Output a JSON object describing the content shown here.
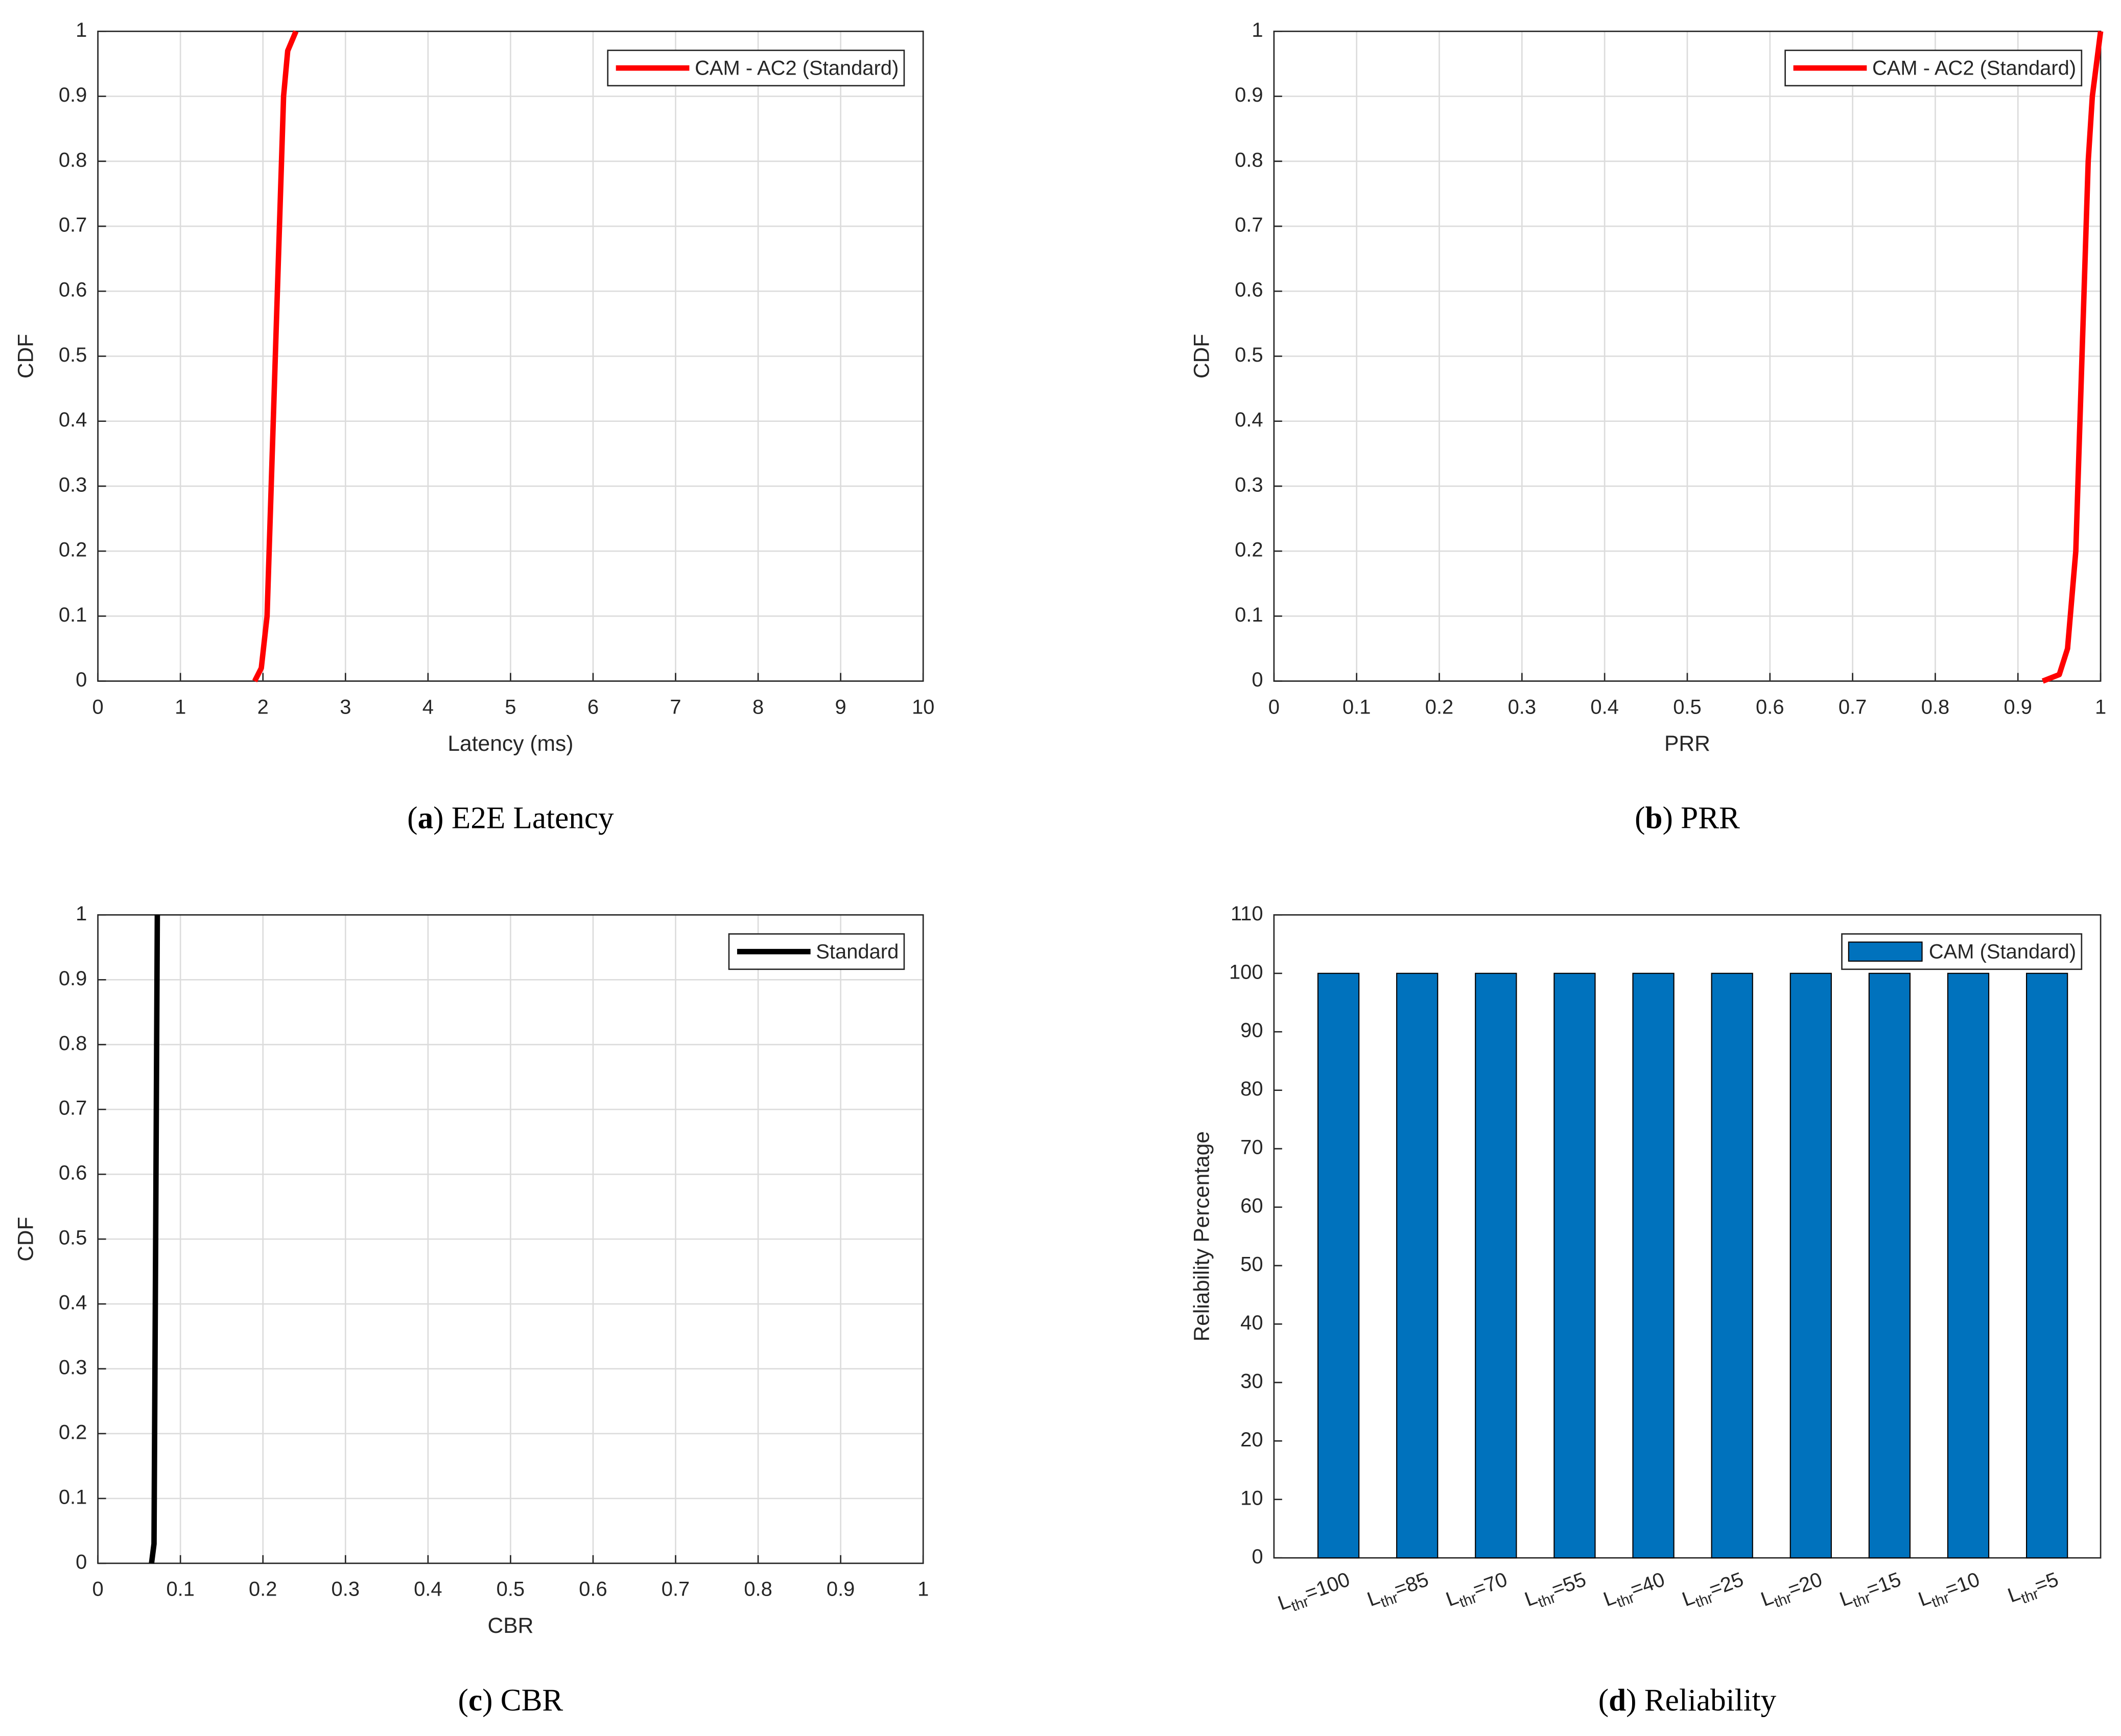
{
  "chart_data": [
    {
      "type": "line",
      "caption": [
        "(",
        "a",
        ") E2E Latency"
      ],
      "xlabel": "Latency (ms)",
      "ylabel": "CDF",
      "x": [
        1.9,
        1.98,
        2.05,
        2.1,
        2.15,
        2.2,
        2.25,
        2.3,
        2.4
      ],
      "series": [
        {
          "name": "CAM - AC2 (Standard)",
          "color": "#ff0000",
          "values": [
            0,
            0.02,
            0.1,
            0.3,
            0.5,
            0.7,
            0.9,
            0.97,
            1
          ]
        }
      ],
      "xlim": [
        0,
        10
      ],
      "ylim": [
        0,
        1
      ],
      "xticks": [
        0,
        1,
        2,
        3,
        4,
        5,
        6,
        7,
        8,
        9,
        10
      ],
      "yticks": [
        0,
        0.1,
        0.2,
        0.3,
        0.4,
        0.5,
        0.6,
        0.7,
        0.8,
        0.9,
        1
      ],
      "grid": true,
      "legend": "northeast"
    },
    {
      "type": "line",
      "caption": [
        "(",
        "b",
        ") PRR"
      ],
      "xlabel": "PRR",
      "ylabel": "CDF",
      "x": [
        0.93,
        0.95,
        0.96,
        0.97,
        0.975,
        0.98,
        0.985,
        0.99,
        1
      ],
      "series": [
        {
          "name": "CAM - AC2 (Standard)",
          "color": "#ff0000",
          "values": [
            0,
            0.01,
            0.05,
            0.2,
            0.4,
            0.6,
            0.8,
            0.9,
            1
          ]
        }
      ],
      "xlim": [
        0,
        1
      ],
      "ylim": [
        0,
        1
      ],
      "xticks": [
        0,
        0.1,
        0.2,
        0.3,
        0.4,
        0.5,
        0.6,
        0.7,
        0.8,
        0.9,
        1
      ],
      "yticks": [
        0,
        0.1,
        0.2,
        0.3,
        0.4,
        0.5,
        0.6,
        0.7,
        0.8,
        0.9,
        1
      ],
      "grid": true,
      "legend": "northeast"
    },
    {
      "type": "line",
      "caption": [
        "(",
        "c",
        ") CBR"
      ],
      "xlabel": "CBR",
      "ylabel": "CDF",
      "x": [
        0.065,
        0.068,
        0.07,
        0.072
      ],
      "series": [
        {
          "name": "Standard",
          "color": "#000000",
          "values": [
            0,
            0.03,
            0.5,
            1
          ]
        }
      ],
      "xlim": [
        0,
        1
      ],
      "ylim": [
        0,
        1
      ],
      "xticks": [
        0,
        0.1,
        0.2,
        0.3,
        0.4,
        0.5,
        0.6,
        0.7,
        0.8,
        0.9,
        1
      ],
      "yticks": [
        0,
        0.1,
        0.2,
        0.3,
        0.4,
        0.5,
        0.6,
        0.7,
        0.8,
        0.9,
        1
      ],
      "grid": true,
      "legend": "northeast"
    },
    {
      "type": "bar",
      "caption": [
        "(",
        "d",
        ") Reliability"
      ],
      "ylabel": "Reliability Percentage",
      "categories": [
        [
          "L",
          "thr",
          "=100"
        ],
        [
          "L",
          "thr",
          "=85"
        ],
        [
          "L",
          "thr",
          "=70"
        ],
        [
          "L",
          "thr",
          "=55"
        ],
        [
          "L",
          "thr",
          "=40"
        ],
        [
          "L",
          "thr",
          "=25"
        ],
        [
          "L",
          "thr",
          "=20"
        ],
        [
          "L",
          "thr",
          "=15"
        ],
        [
          "L",
          "thr",
          "=10"
        ],
        [
          "L",
          "thr",
          "=5"
        ]
      ],
      "series": [
        {
          "name": "CAM (Standard)",
          "color": "#0072bd",
          "values": [
            100,
            100,
            100,
            100,
            100,
            100,
            100,
            100,
            100,
            100
          ]
        }
      ],
      "ylim": [
        0,
        110
      ],
      "yticks": [
        0,
        10,
        20,
        30,
        40,
        50,
        60,
        70,
        80,
        90,
        100,
        110
      ],
      "grid": false,
      "legend": "northeast"
    }
  ]
}
